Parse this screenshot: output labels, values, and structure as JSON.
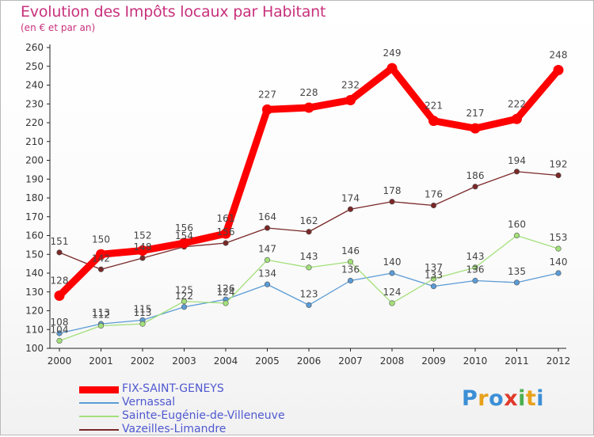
{
  "chart_data": {
    "type": "line",
    "title": "Evolution des Impôts locaux par Habitant",
    "subtitle": "(en € et par an)",
    "x": [
      "2000",
      "2001",
      "2002",
      "2003",
      "2004",
      "2005",
      "2006",
      "2007",
      "2008",
      "2009",
      "2010",
      "2011",
      "2012"
    ],
    "ylim": [
      100,
      260
    ],
    "yticks": [
      100,
      110,
      120,
      130,
      140,
      150,
      160,
      170,
      180,
      190,
      200,
      210,
      220,
      230,
      240,
      250,
      260
    ],
    "grid": false,
    "series": [
      {
        "name": "FIX-SAINT-GENEYS",
        "color": "#ff0000",
        "values": [
          128,
          150,
          152,
          156,
          161,
          227,
          228,
          232,
          249,
          221,
          217,
          222,
          248
        ]
      },
      {
        "name": "Vernassal",
        "color": "#5b9bd5",
        "values": [
          108,
          113,
          115,
          122,
          126,
          134,
          123,
          136,
          140,
          133,
          136,
          135,
          140
        ]
      },
      {
        "name": "Sainte-Eugénie-de-Villeneuve",
        "color": "#a3e07a",
        "values": [
          104,
          112,
          113,
          125,
          124,
          147,
          143,
          146,
          124,
          137,
          143,
          160,
          153
        ]
      },
      {
        "name": "Vazeilles-Limandre",
        "color": "#7a2828",
        "values": [
          151,
          142,
          148,
          154,
          156,
          164,
          162,
          174,
          178,
          176,
          186,
          194,
          192
        ]
      }
    ]
  },
  "logo": {
    "letters": [
      "P",
      "r",
      "o",
      "x",
      "i",
      "t",
      "i"
    ]
  }
}
